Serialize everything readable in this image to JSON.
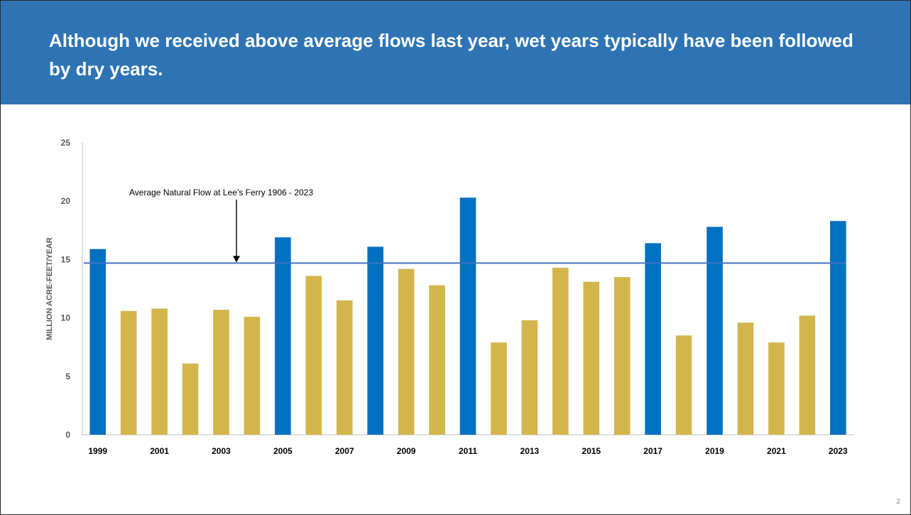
{
  "slide": {
    "title": "Although we received above average flows last year, wet years typically have been followed by dry years.",
    "page_number": "2"
  },
  "colors": {
    "header": "#2e74b5",
    "wet_bar": "#0070c0",
    "dry_bar": "#d2b64c",
    "average_line": "#4472c4",
    "axis": "#bfbfbf"
  },
  "chart_data": {
    "type": "bar",
    "title": "",
    "ylabel": "MILLION ACRE-FEET/YEAR",
    "xlabel": "",
    "ylim": [
      0,
      25
    ],
    "yticks": [
      0,
      5,
      10,
      15,
      20,
      25
    ],
    "grid": false,
    "categories": [
      "1999",
      "2000",
      "2001",
      "2002",
      "2003",
      "2004",
      "2005",
      "2006",
      "2007",
      "2008",
      "2009",
      "2010",
      "2011",
      "2012",
      "2013",
      "2014",
      "2015",
      "2016",
      "2017",
      "2018",
      "2019",
      "2020",
      "2021",
      "2022",
      "2023"
    ],
    "x_tick_labels": [
      "1999",
      "",
      "2001",
      "",
      "2003",
      "",
      "2005",
      "",
      "2007",
      "",
      "2009",
      "",
      "2011",
      "",
      "2013",
      "",
      "2015",
      "",
      "2017",
      "",
      "2019",
      "",
      "2021",
      "",
      "2023"
    ],
    "values": [
      15.9,
      10.6,
      10.8,
      6.1,
      10.7,
      10.1,
      16.9,
      13.6,
      11.5,
      16.1,
      14.2,
      12.8,
      20.3,
      7.9,
      9.8,
      14.3,
      13.1,
      13.5,
      16.4,
      8.5,
      17.8,
      9.6,
      7.9,
      10.2,
      18.3
    ],
    "above_average": [
      true,
      false,
      false,
      false,
      false,
      false,
      true,
      false,
      false,
      true,
      false,
      false,
      true,
      false,
      false,
      false,
      false,
      false,
      true,
      false,
      true,
      false,
      false,
      false,
      true
    ],
    "average_line": {
      "value": 14.7,
      "label": "Average Natural Flow at Lee’s Ferry 1906 - 2023"
    }
  }
}
